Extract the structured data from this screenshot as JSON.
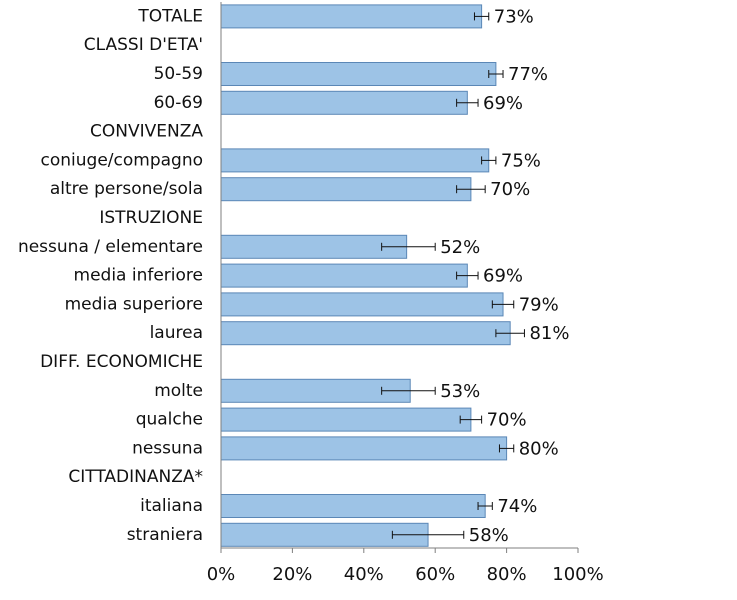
{
  "chart_data": {
    "type": "bar",
    "orientation": "horizontal",
    "bar_color": "#9dc3e6",
    "bar_border": "#5b87b6",
    "axis_color": "#7f7f7f",
    "xlim": [
      0,
      100
    ],
    "x_ticks": [
      "0%",
      "20%",
      "40%",
      "60%",
      "80%",
      "100%"
    ],
    "rows": [
      {
        "label": "TOTALE",
        "value": 73,
        "err_low": 71,
        "err_high": 75,
        "value_label": "73%"
      },
      {
        "label": "CLASSI D'ETA'",
        "value": null
      },
      {
        "label": "50-59",
        "value": 77,
        "err_low": 75,
        "err_high": 79,
        "value_label": "77%"
      },
      {
        "label": "60-69",
        "value": 69,
        "err_low": 66,
        "err_high": 72,
        "value_label": "69%"
      },
      {
        "label": "CONVIVENZA",
        "value": null
      },
      {
        "label": "coniuge/compagno",
        "value": 75,
        "err_low": 73,
        "err_high": 77,
        "value_label": "75%"
      },
      {
        "label": "altre persone/sola",
        "value": 70,
        "err_low": 66,
        "err_high": 74,
        "value_label": "70%"
      },
      {
        "label": "ISTRUZIONE",
        "value": null
      },
      {
        "label": "nessuna / elementare",
        "value": 52,
        "err_low": 45,
        "err_high": 60,
        "value_label": "52%"
      },
      {
        "label": "media inferiore",
        "value": 69,
        "err_low": 66,
        "err_high": 72,
        "value_label": "69%"
      },
      {
        "label": "media superiore",
        "value": 79,
        "err_low": 76,
        "err_high": 82,
        "value_label": "79%"
      },
      {
        "label": "laurea",
        "value": 81,
        "err_low": 77,
        "err_high": 85,
        "value_label": "81%"
      },
      {
        "label": "DIFF. ECONOMICHE",
        "value": null
      },
      {
        "label": "molte",
        "value": 53,
        "err_low": 45,
        "err_high": 60,
        "value_label": "53%"
      },
      {
        "label": "qualche",
        "value": 70,
        "err_low": 67,
        "err_high": 73,
        "value_label": "70%"
      },
      {
        "label": "nessuna",
        "value": 80,
        "err_low": 78,
        "err_high": 82,
        "value_label": "80%"
      },
      {
        "label": "CITTADINANZA*",
        "value": null
      },
      {
        "label": "italiana",
        "value": 74,
        "err_low": 72,
        "err_high": 76,
        "value_label": "74%"
      },
      {
        "label": "straniera",
        "value": 58,
        "err_low": 48,
        "err_high": 68,
        "value_label": "58%"
      }
    ]
  }
}
